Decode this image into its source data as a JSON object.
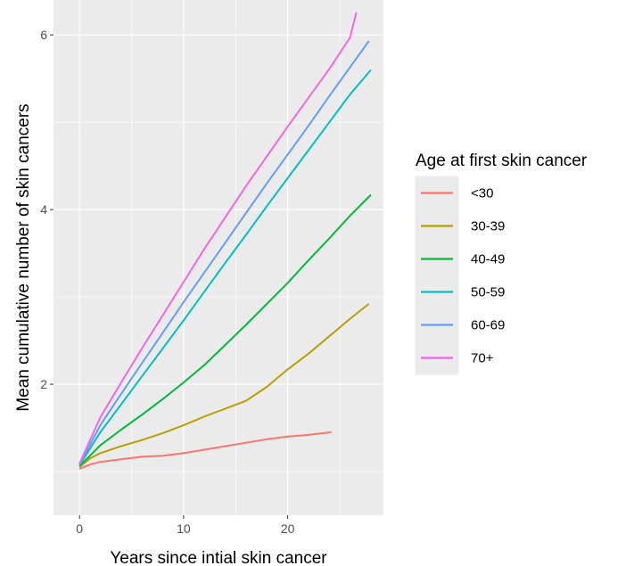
{
  "chart_data": {
    "type": "line",
    "title": "",
    "xlabel": "Years since intial skin cancer",
    "ylabel": "Mean cumulative number of skin cancers",
    "xlim": [
      -2.5,
      29.2
    ],
    "ylim": [
      0.5,
      6.4
    ],
    "x_ticks": [
      0,
      10,
      20
    ],
    "y_ticks": [
      2,
      4,
      6
    ],
    "grid": true,
    "panel_background": "#ebebeb",
    "legend": {
      "title": "Age at first skin cancer",
      "placement": "right"
    },
    "series": [
      {
        "name": "<30",
        "color": "#f8766d",
        "x": [
          0,
          1,
          2,
          4,
          6,
          8,
          10,
          12,
          14,
          16,
          18,
          20,
          22,
          24.2
        ],
        "y": [
          1.03,
          1.08,
          1.11,
          1.14,
          1.17,
          1.18,
          1.21,
          1.25,
          1.29,
          1.33,
          1.37,
          1.4,
          1.42,
          1.45
        ]
      },
      {
        "name": "30-39",
        "color": "#b79f00",
        "x": [
          0,
          1,
          2,
          4,
          6,
          8,
          10,
          12,
          14,
          16,
          18,
          20,
          22,
          24,
          26,
          27.8
        ],
        "y": [
          1.05,
          1.15,
          1.21,
          1.29,
          1.36,
          1.44,
          1.53,
          1.63,
          1.72,
          1.81,
          1.97,
          2.17,
          2.35,
          2.55,
          2.75,
          2.92
        ]
      },
      {
        "name": "40-49",
        "color": "#00ba38",
        "x": [
          0,
          2,
          4,
          6,
          8,
          10,
          12,
          14,
          16,
          18,
          20,
          22,
          24,
          26,
          28
        ],
        "y": [
          1.06,
          1.3,
          1.48,
          1.65,
          1.83,
          2.02,
          2.22,
          2.45,
          2.68,
          2.92,
          3.16,
          3.42,
          3.67,
          3.93,
          4.17
        ]
      },
      {
        "name": "50-59",
        "color": "#00bfc4",
        "x": [
          0,
          2,
          4,
          6,
          8,
          10,
          12,
          14,
          16,
          18,
          20,
          22,
          24,
          26,
          28
        ],
        "y": [
          1.07,
          1.45,
          1.77,
          2.09,
          2.41,
          2.73,
          3.06,
          3.39,
          3.71,
          4.04,
          4.36,
          4.68,
          5.0,
          5.32,
          5.6
        ]
      },
      {
        "name": "60-69",
        "color": "#619cff",
        "x": [
          0,
          2,
          4,
          6,
          8,
          10,
          12,
          14,
          16,
          18,
          20,
          22,
          24,
          26,
          27.8
        ],
        "y": [
          1.08,
          1.53,
          1.89,
          2.24,
          2.59,
          2.94,
          3.28,
          3.62,
          3.96,
          4.3,
          4.63,
          4.96,
          5.3,
          5.63,
          5.93
        ]
      },
      {
        "name": "70+",
        "color": "#f564e3",
        "x": [
          0,
          2,
          4,
          6,
          8,
          10,
          12,
          14,
          16,
          18,
          20,
          22,
          24,
          26,
          26.6
        ],
        "y": [
          1.09,
          1.62,
          2.02,
          2.41,
          2.79,
          3.17,
          3.55,
          3.91,
          4.27,
          4.61,
          4.95,
          5.28,
          5.61,
          5.97,
          6.26
        ]
      }
    ]
  }
}
